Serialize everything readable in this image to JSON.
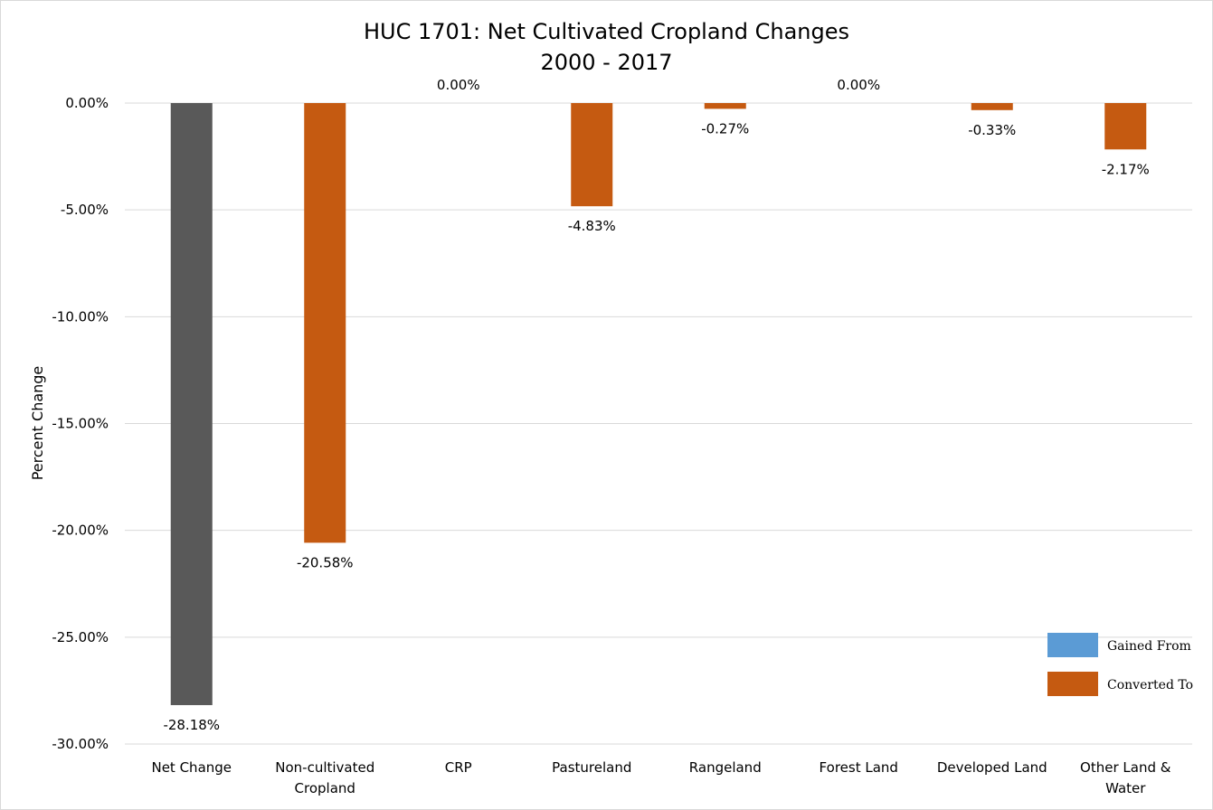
{
  "chart_data": {
    "type": "bar",
    "title": "HUC 1701: Net Cultivated Cropland Changes",
    "subtitle": "2000 - 2017",
    "ylabel": "Percent Change",
    "xlabel": "",
    "ylim": [
      -30,
      0
    ],
    "yticks": [
      0,
      -5,
      -10,
      -15,
      -20,
      -25,
      -30
    ],
    "ytick_labels": [
      "0.00%",
      "-5.00%",
      "-10.00%",
      "-15.00%",
      "-20.00%",
      "-25.00%",
      "-30.00%"
    ],
    "grid": true,
    "categories": [
      [
        "Net Change"
      ],
      [
        "Non-cultivated",
        "Cropland"
      ],
      [
        "CRP"
      ],
      [
        "Pastureland"
      ],
      [
        "Rangeland"
      ],
      [
        "Forest Land"
      ],
      [
        "Developed Land"
      ],
      [
        "Other Land &",
        "Water"
      ]
    ],
    "values": [
      -28.18,
      -20.58,
      0.0,
      -4.83,
      -0.27,
      0.0,
      -0.33,
      -2.17
    ],
    "value_labels": [
      "-28.18%",
      "-20.58%",
      "0.00%",
      "-4.83%",
      "-0.27%",
      "0.00%",
      "-0.33%",
      "-2.17%"
    ],
    "bar_kinds": [
      "net",
      "converted",
      "converted",
      "converted",
      "converted",
      "converted",
      "converted",
      "converted"
    ],
    "colors": {
      "net": "#595959",
      "gained": "#5b9bd5",
      "converted": "#c55a11",
      "grid": "#d9d9d9"
    },
    "legend": {
      "placement": "bottom-right",
      "entries": [
        {
          "name": "Gained From",
          "kind": "gained"
        },
        {
          "name": "Converted To",
          "kind": "converted"
        }
      ]
    }
  }
}
